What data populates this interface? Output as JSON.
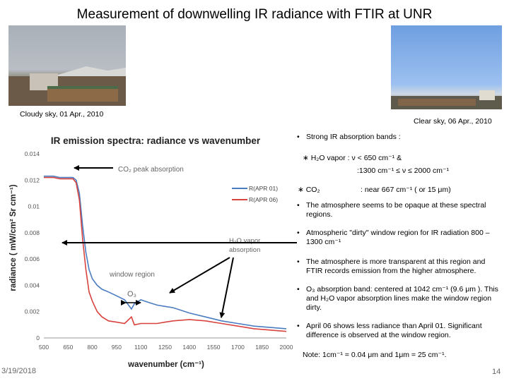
{
  "slide": {
    "title": "Measurement of downwelling IR radiance with FTIR at UNR",
    "footer_date": "3/19/2018",
    "page_number": "14"
  },
  "photos": {
    "cloudy_caption": "Cloudy sky, 01 Apr., 2010",
    "clear_caption": "Clear sky, 06 Apr., 2010"
  },
  "chart_data": {
    "type": "line",
    "title": "IR emission spectra: radiance vs wavenumber",
    "xlabel": "wavenumber (cm⁻¹)",
    "ylabel": "radiance ( mW/cm² Sr cm⁻¹)",
    "xlim": [
      500,
      2000
    ],
    "ylim": [
      0,
      0.014
    ],
    "x_ticks": [
      "500",
      "650",
      "800",
      "950",
      "1100",
      "1250",
      "1400",
      "1550",
      "1700",
      "1850",
      "2000"
    ],
    "y_ticks": [
      "0",
      "0.002",
      "0.004",
      "0.006",
      "0.008",
      "0.01",
      "0.012",
      "0.014"
    ],
    "legend_position": "right",
    "series": [
      {
        "name": "R(APR 01)",
        "color": "#4a7cc0",
        "x": [
          500,
          560,
          600,
          640,
          680,
          700,
          720,
          740,
          760,
          780,
          800,
          830,
          860,
          900,
          950,
          1000,
          1042,
          1060,
          1100,
          1150,
          1200,
          1250,
          1300,
          1400,
          1500,
          1600,
          1700,
          1800,
          1900,
          2000
        ],
        "y": [
          0.0123,
          0.0123,
          0.0122,
          0.0122,
          0.0122,
          0.012,
          0.011,
          0.0085,
          0.0065,
          0.0052,
          0.0045,
          0.004,
          0.0037,
          0.0035,
          0.0032,
          0.0029,
          0.0022,
          0.0026,
          0.0029,
          0.0027,
          0.0025,
          0.0024,
          0.0023,
          0.0019,
          0.0016,
          0.0013,
          0.0011,
          0.0009,
          0.0008,
          0.0007
        ]
      },
      {
        "name": "R(APR 06)",
        "color": "#d9433f",
        "x": [
          500,
          560,
          600,
          640,
          680,
          700,
          720,
          740,
          760,
          780,
          800,
          830,
          860,
          900,
          950,
          1000,
          1042,
          1060,
          1100,
          1150,
          1200,
          1250,
          1300,
          1400,
          1500,
          1600,
          1700,
          1800,
          1900,
          2000
        ],
        "y": [
          0.0122,
          0.0122,
          0.0121,
          0.0121,
          0.0121,
          0.0118,
          0.0105,
          0.0075,
          0.0052,
          0.0035,
          0.0028,
          0.002,
          0.0016,
          0.0013,
          0.0012,
          0.0011,
          0.0016,
          0.001,
          0.0011,
          0.0011,
          0.0011,
          0.0012,
          0.0013,
          0.0014,
          0.0013,
          0.0011,
          0.0009,
          0.0007,
          0.0006,
          0.0005
        ]
      }
    ],
    "annotations": {
      "co2": "CO₂ peak absorption",
      "h2o_line1": "H₂O vapor",
      "h2o_line2": "absorption",
      "window": "window region",
      "o3": "O₃"
    }
  },
  "bullets": {
    "b1": "Strong IR absorption bands :",
    "b1_h2o_a": "∗ H₂O vapor :  ν  < 650 cm⁻¹  &",
    "b1_h2o_b": ":1300 cm⁻¹ ≤  ν  ≤  2000 cm⁻¹",
    "b1_co2_a": "∗ CO₂",
    "b1_co2_b": ": near 667 cm⁻¹  ( or 15 μm)",
    "b2": "The atmosphere seems to be opaque at these spectral regions.",
    "b3": "Atmospheric \"dirty\" window region for IR radiation 800 – 1300 cm⁻¹",
    "b4": "The atmosphere is more transparent at this region and FTIR records emission from the higher atmosphere.",
    "b5": "O₃ absorption band: centered  at 1042 cm⁻¹ (9.6 μm ).  This and H₂O vapor absorption lines make  the window region dirty.",
    "b6": "April 06 shows less radiance than April 01. Significant difference is observed at the window region.",
    "note": "Note: 1cm⁻¹ = 0.04 μm and 1μm = 25 cm⁻¹."
  }
}
